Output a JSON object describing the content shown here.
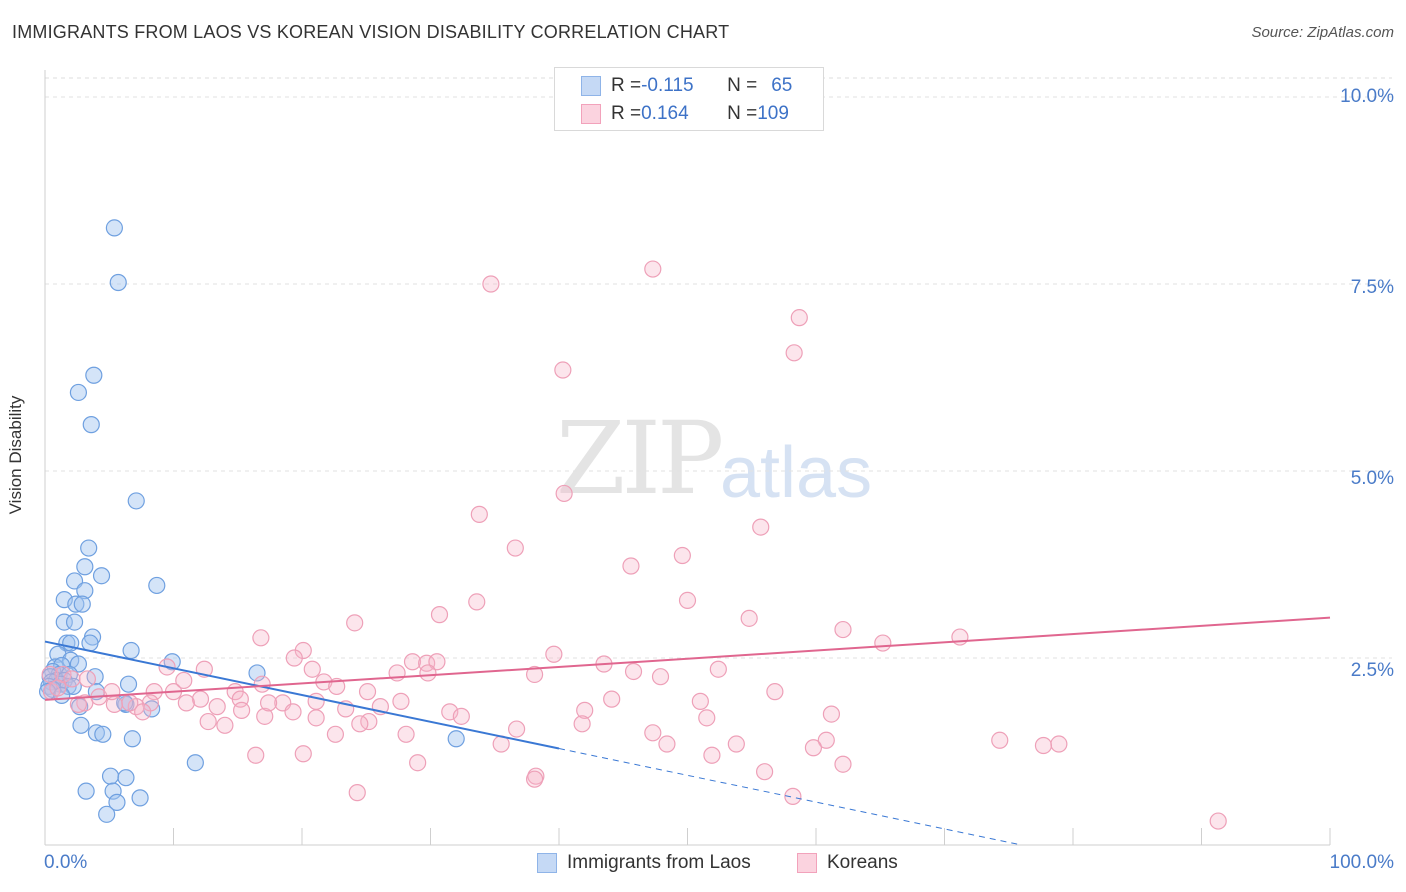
{
  "title": "IMMIGRANTS FROM LAOS VS KOREAN VISION DISABILITY CORRELATION CHART",
  "source": "Source: ZipAtlas.com",
  "watermark": {
    "zip": "ZIP",
    "atlas": "atlas"
  },
  "stats": [
    {
      "r_label": "R = ",
      "r_value": "-0.115",
      "n_label": "N = ",
      "n_value": " 65",
      "color": "#8fb4e8",
      "fill": "#c5d9f5"
    },
    {
      "r_label": "R = ",
      "r_value": " 0.164",
      "n_label": "N = ",
      "n_value": "109",
      "color": "#f2a2bb",
      "fill": "#fbd3df"
    }
  ],
  "legend": [
    {
      "label": "Immigrants from Laos",
      "color": "#8fb4e8",
      "fill": "#c5d9f5"
    },
    {
      "label": "Koreans",
      "color": "#f2a2bb",
      "fill": "#fbd3df"
    }
  ],
  "chart_data": {
    "type": "scatter",
    "title": "IMMIGRANTS FROM LAOS VS KOREAN VISION DISABILITY CORRELATION CHART",
    "xlabel": "",
    "ylabel": "Vision Disability",
    "xlim": [
      0,
      100
    ],
    "ylim": [
      0,
      10.3
    ],
    "x_tick_labels": [
      "0.0%",
      "100.0%"
    ],
    "y_ticks": [
      2.5,
      5.0,
      7.5,
      10.0
    ],
    "y_tick_labels": [
      "2.5%",
      "5.0%",
      "7.5%",
      "10.0%"
    ],
    "grid": true,
    "series": [
      {
        "name": "Immigrants from Laos",
        "color": "#6fa0e0",
        "trend": {
          "x0": 0,
          "y0": 2.72,
          "x1": 40,
          "y1": 1.29,
          "dashed_to_x": 76,
          "dashed_to_y": 0.0
        },
        "points": [
          [
            5.4,
            8.25
          ],
          [
            5.7,
            7.52
          ],
          [
            3.8,
            6.28
          ],
          [
            2.6,
            6.05
          ],
          [
            3.6,
            5.62
          ],
          [
            7.1,
            4.6
          ],
          [
            3.4,
            3.97
          ],
          [
            3.1,
            3.72
          ],
          [
            4.4,
            3.6
          ],
          [
            2.3,
            3.53
          ],
          [
            8.7,
            3.47
          ],
          [
            3.1,
            3.4
          ],
          [
            1.5,
            3.28
          ],
          [
            2.4,
            3.22
          ],
          [
            2.9,
            3.22
          ],
          [
            1.5,
            2.98
          ],
          [
            2.3,
            2.98
          ],
          [
            3.7,
            2.78
          ],
          [
            1.7,
            2.7
          ],
          [
            2.0,
            2.7
          ],
          [
            3.5,
            2.7
          ],
          [
            6.7,
            2.6
          ],
          [
            1.0,
            2.55
          ],
          [
            2.0,
            2.47
          ],
          [
            2.6,
            2.42
          ],
          [
            0.8,
            2.38
          ],
          [
            1.3,
            2.4
          ],
          [
            0.6,
            2.32
          ],
          [
            9.9,
            2.45
          ],
          [
            16.5,
            2.3
          ],
          [
            1.1,
            2.28
          ],
          [
            1.9,
            2.28
          ],
          [
            0.4,
            2.25
          ],
          [
            0.9,
            2.2
          ],
          [
            1.5,
            2.2
          ],
          [
            3.9,
            2.25
          ],
          [
            0.5,
            2.18
          ],
          [
            1.2,
            2.15
          ],
          [
            6.5,
            2.15
          ],
          [
            0.3,
            2.12
          ],
          [
            1.8,
            2.12
          ],
          [
            2.2,
            2.12
          ],
          [
            0.6,
            2.08
          ],
          [
            0.2,
            2.05
          ],
          [
            4.0,
            2.05
          ],
          [
            1.3,
            2.0
          ],
          [
            6.3,
            1.88
          ],
          [
            2.7,
            1.85
          ],
          [
            8.3,
            1.82
          ],
          [
            6.2,
            1.9
          ],
          [
            2.8,
            1.6
          ],
          [
            4.0,
            1.5
          ],
          [
            4.5,
            1.48
          ],
          [
            6.8,
            1.42
          ],
          [
            32.0,
            1.42
          ],
          [
            11.7,
            1.1
          ],
          [
            5.1,
            0.92
          ],
          [
            6.3,
            0.9
          ],
          [
            5.3,
            0.72
          ],
          [
            3.2,
            0.72
          ],
          [
            7.4,
            0.63
          ],
          [
            5.6,
            0.57
          ],
          [
            4.8,
            0.41
          ]
        ]
      },
      {
        "name": "Koreans",
        "color": "#f0a0b8",
        "trend": {
          "x0": 0,
          "y0": 1.94,
          "x1": 100,
          "y1": 3.04
        },
        "points": [
          [
            47.3,
            7.7
          ],
          [
            34.7,
            7.5
          ],
          [
            58.7,
            7.05
          ],
          [
            58.3,
            6.58
          ],
          [
            40.3,
            6.35
          ],
          [
            40.4,
            4.7
          ],
          [
            33.8,
            4.42
          ],
          [
            55.7,
            4.25
          ],
          [
            36.6,
            3.97
          ],
          [
            49.6,
            3.87
          ],
          [
            45.6,
            3.73
          ],
          [
            33.6,
            3.25
          ],
          [
            50.0,
            3.27
          ],
          [
            30.7,
            3.08
          ],
          [
            24.1,
            2.97
          ],
          [
            54.8,
            3.03
          ],
          [
            62.1,
            2.88
          ],
          [
            71.2,
            2.78
          ],
          [
            16.8,
            2.77
          ],
          [
            65.2,
            2.7
          ],
          [
            20.1,
            2.6
          ],
          [
            39.6,
            2.55
          ],
          [
            19.4,
            2.5
          ],
          [
            28.6,
            2.45
          ],
          [
            29.7,
            2.43
          ],
          [
            30.5,
            2.45
          ],
          [
            43.5,
            2.42
          ],
          [
            52.4,
            2.35
          ],
          [
            9.5,
            2.38
          ],
          [
            12.4,
            2.35
          ],
          [
            20.8,
            2.35
          ],
          [
            27.4,
            2.3
          ],
          [
            29.8,
            2.3
          ],
          [
            38.1,
            2.28
          ],
          [
            47.9,
            2.25
          ],
          [
            10.8,
            2.2
          ],
          [
            21.7,
            2.18
          ],
          [
            16.9,
            2.15
          ],
          [
            22.7,
            2.12
          ],
          [
            10.0,
            2.05
          ],
          [
            8.5,
            2.05
          ],
          [
            14.8,
            2.05
          ],
          [
            25.1,
            2.05
          ],
          [
            56.8,
            2.05
          ],
          [
            12.1,
            1.95
          ],
          [
            15.2,
            1.95
          ],
          [
            11.0,
            1.9
          ],
          [
            8.2,
            1.9
          ],
          [
            18.5,
            1.9
          ],
          [
            21.1,
            1.92
          ],
          [
            27.7,
            1.92
          ],
          [
            51.0,
            1.92
          ],
          [
            3.1,
            1.9
          ],
          [
            5.4,
            1.88
          ],
          [
            7.1,
            1.85
          ],
          [
            13.4,
            1.85
          ],
          [
            23.4,
            1.82
          ],
          [
            26.1,
            1.85
          ],
          [
            15.3,
            1.8
          ],
          [
            7.6,
            1.78
          ],
          [
            17.1,
            1.72
          ],
          [
            19.3,
            1.78
          ],
          [
            31.5,
            1.78
          ],
          [
            32.4,
            1.72
          ],
          [
            42.0,
            1.8
          ],
          [
            21.1,
            1.7
          ],
          [
            12.7,
            1.65
          ],
          [
            51.5,
            1.7
          ],
          [
            41.8,
            1.62
          ],
          [
            25.2,
            1.65
          ],
          [
            14.0,
            1.6
          ],
          [
            36.7,
            1.55
          ],
          [
            47.3,
            1.5
          ],
          [
            28.1,
            1.48
          ],
          [
            22.6,
            1.48
          ],
          [
            60.8,
            1.4
          ],
          [
            35.5,
            1.35
          ],
          [
            48.4,
            1.35
          ],
          [
            53.8,
            1.35
          ],
          [
            74.3,
            1.4
          ],
          [
            78.9,
            1.35
          ],
          [
            77.7,
            1.33
          ],
          [
            59.8,
            1.3
          ],
          [
            20.1,
            1.22
          ],
          [
            16.4,
            1.2
          ],
          [
            51.9,
            1.2
          ],
          [
            29.0,
            1.1
          ],
          [
            62.1,
            1.08
          ],
          [
            56.0,
            0.98
          ],
          [
            38.2,
            0.92
          ],
          [
            38.1,
            0.88
          ],
          [
            24.3,
            0.7
          ],
          [
            58.2,
            0.65
          ],
          [
            91.3,
            0.32
          ],
          [
            0.4,
            2.28
          ],
          [
            1.4,
            2.28
          ],
          [
            2.1,
            2.22
          ],
          [
            3.3,
            2.22
          ],
          [
            0.5,
            2.05
          ],
          [
            1.0,
            2.1
          ],
          [
            4.2,
            1.98
          ],
          [
            5.2,
            2.05
          ],
          [
            6.6,
            1.9
          ],
          [
            2.6,
            1.88
          ],
          [
            24.5,
            1.62
          ],
          [
            45.8,
            2.32
          ],
          [
            61.2,
            1.75
          ],
          [
            17.4,
            1.9
          ],
          [
            44.1,
            1.95
          ]
        ]
      }
    ]
  }
}
